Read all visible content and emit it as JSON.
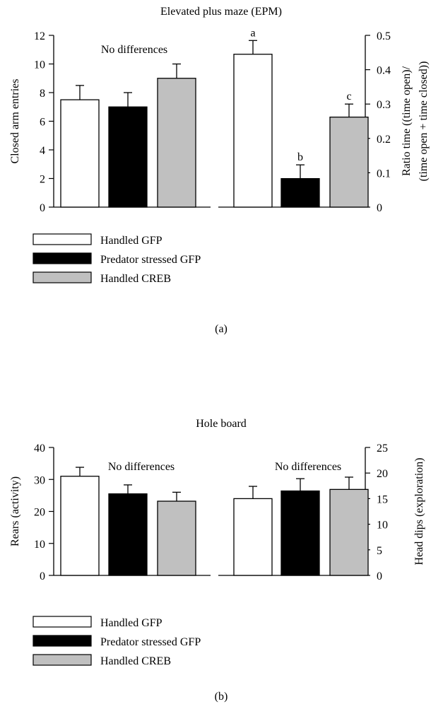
{
  "chart_data": [
    {
      "panel_label": "(a)",
      "title": "Elevated plus maze (EPM)",
      "type": "bar",
      "legend": {
        "position": "bottom-left",
        "entries": [
          {
            "name": "Handled GFP",
            "color": "#ffffff"
          },
          {
            "name": "Predator stressed GFP",
            "color": "#000000"
          },
          {
            "name": "Handled CREB",
            "color": "#c0c0c0"
          }
        ]
      },
      "left_axis": {
        "label": "Closed arm entries",
        "ylim": [
          0,
          12
        ],
        "ticks": [
          "0",
          "2",
          "4",
          "6",
          "8",
          "10",
          "12"
        ],
        "annotation": "No differences",
        "series": [
          {
            "name": "Handled GFP",
            "value": 7.5,
            "error": 1.0,
            "letter": ""
          },
          {
            "name": "Predator stressed GFP",
            "value": 7.0,
            "error": 1.0,
            "letter": ""
          },
          {
            "name": "Handled CREB",
            "value": 9.0,
            "error": 1.0,
            "letter": ""
          }
        ]
      },
      "right_axis": {
        "label_line1": "Ratio time ((time open)/",
        "label_line2": "(time open + time closed))",
        "ylim": [
          0,
          0.5
        ],
        "ticks": [
          "0",
          "0.1",
          "0.2",
          "0.3",
          "0.4",
          "0.5"
        ],
        "annotation": "",
        "series": [
          {
            "name": "Handled GFP",
            "value": 0.445,
            "error": 0.04,
            "letter": "a"
          },
          {
            "name": "Predator stressed GFP",
            "value": 0.083,
            "error": 0.04,
            "letter": "b"
          },
          {
            "name": "Handled CREB",
            "value": 0.262,
            "error": 0.038,
            "letter": "c"
          }
        ]
      }
    },
    {
      "panel_label": "(b)",
      "title": "Hole board",
      "type": "bar",
      "legend": {
        "position": "bottom-left",
        "entries": [
          {
            "name": "Handled GFP",
            "color": "#ffffff"
          },
          {
            "name": "Predator stressed GFP",
            "color": "#000000"
          },
          {
            "name": "Handled CREB",
            "color": "#c0c0c0"
          }
        ]
      },
      "left_axis": {
        "label": "Rears (activity)",
        "ylim": [
          0,
          40
        ],
        "ticks": [
          "0",
          "10",
          "20",
          "30",
          "40"
        ],
        "annotation": "No differences",
        "series": [
          {
            "name": "Handled GFP",
            "value": 31,
            "error": 2.8,
            "letter": ""
          },
          {
            "name": "Predator stressed GFP",
            "value": 25.5,
            "error": 2.8,
            "letter": ""
          },
          {
            "name": "Handled CREB",
            "value": 23.2,
            "error": 2.8,
            "letter": ""
          }
        ]
      },
      "right_axis": {
        "label_line1": "Head dips (exploration)",
        "label_line2": "",
        "ylim": [
          0,
          25
        ],
        "ticks": [
          "0",
          "5",
          "10",
          "15",
          "20",
          "25"
        ],
        "annotation": "No differences",
        "series": [
          {
            "name": "Handled GFP",
            "value": 15,
            "error": 2.4,
            "letter": ""
          },
          {
            "name": "Predator stressed GFP",
            "value": 16.5,
            "error": 2.4,
            "letter": ""
          },
          {
            "name": "Handled CREB",
            "value": 16.8,
            "error": 2.4,
            "letter": ""
          }
        ]
      }
    }
  ]
}
